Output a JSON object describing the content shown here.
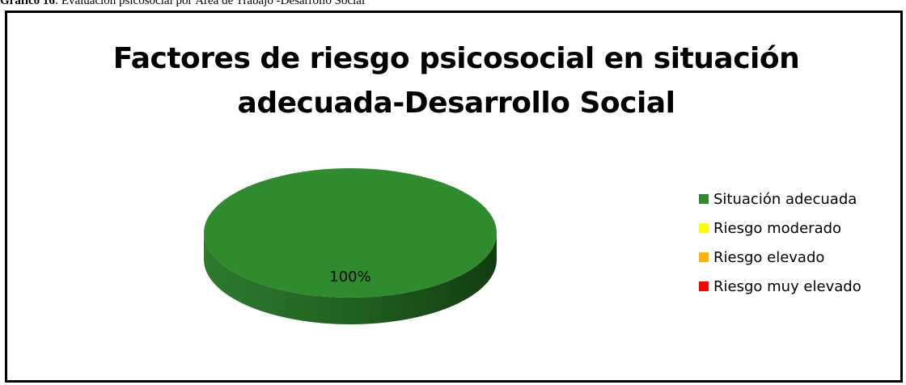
{
  "caption": {
    "bold": "Gráfico 16",
    "text": ": Evaluación psicosocial por Área de Trabajo -Desarrollo Social"
  },
  "chart_data": {
    "type": "pie",
    "title_lines": [
      "Factores de riesgo psicosocial en situación",
      "adecuada-Desarrollo Social"
    ],
    "slices": [
      {
        "name": "Situación adecuada",
        "value": 100,
        "label": "100%",
        "color": "#2E8B2E",
        "side_color": "#1C5A1C"
      },
      {
        "name": "Riesgo moderado",
        "value": 0,
        "label": "",
        "color": "#FFFF00"
      },
      {
        "name": "Riesgo elevado",
        "value": 0,
        "label": "",
        "color": "#FFB300"
      },
      {
        "name": "Riesgo muy elevado",
        "value": 0,
        "label": "",
        "color": "#FF0000"
      }
    ],
    "legend_position": "right",
    "style": "3d"
  }
}
